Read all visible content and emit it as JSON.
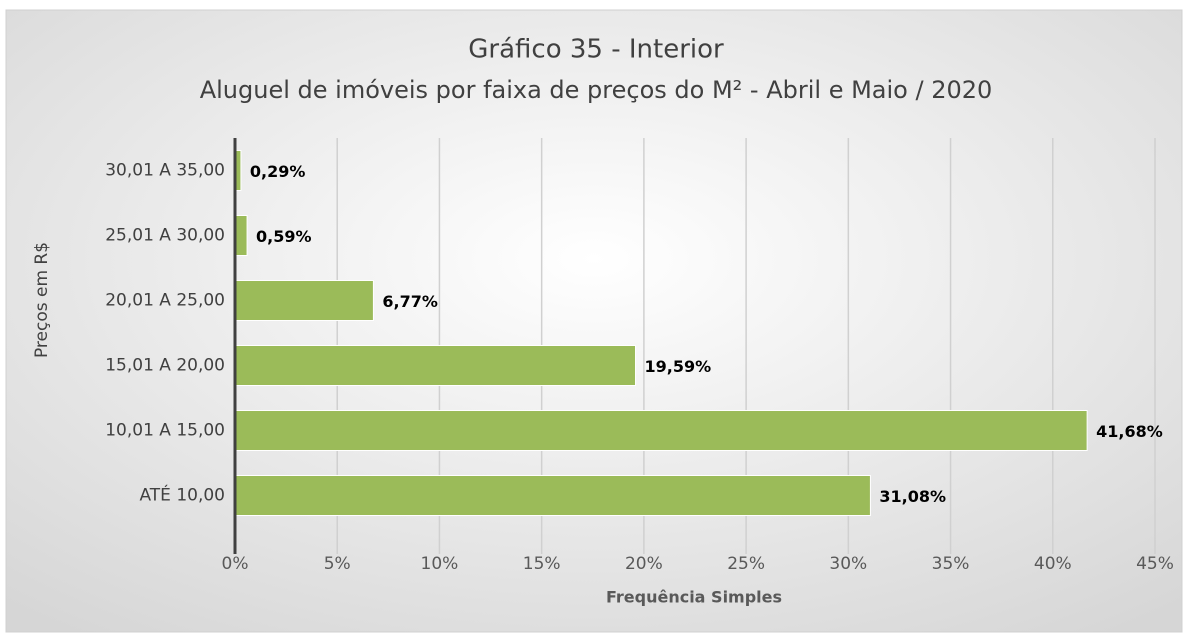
{
  "chart_data": {
    "type": "bar",
    "orientation": "horizontal",
    "title": "Gráfico 35 - Interior",
    "subtitle": "Aluguel de imóveis por faixa de preços do M² - Abril e Maio / 2020",
    "xlabel": "Frequência Simples",
    "ylabel": "Preços em R$",
    "categories": [
      "30,01 A 35,00",
      "25,01 A 30,00",
      "20,01 A 25,00",
      "15,01 A 20,00",
      "10,01 A 15,00",
      "ATÉ 10,00"
    ],
    "values": [
      0.29,
      0.59,
      6.77,
      19.59,
      41.68,
      31.08
    ],
    "value_labels": [
      "0,29%",
      "0,59%",
      "6,77%",
      "19,59%",
      "41,68%",
      "31,08%"
    ],
    "color": "#9bbb59",
    "xlim": [
      0,
      45
    ],
    "xticks": [
      {
        "value": 0,
        "label": "0%"
      },
      {
        "value": 5,
        "label": "5%"
      },
      {
        "value": 10,
        "label": "10%"
      },
      {
        "value": 15,
        "label": "15%"
      },
      {
        "value": 20,
        "label": "20%"
      },
      {
        "value": 25,
        "label": "25%"
      },
      {
        "value": 30,
        "label": "30%"
      },
      {
        "value": 35,
        "label": "35%"
      },
      {
        "value": 40,
        "label": "40%"
      },
      {
        "value": 45,
        "label": "45%"
      }
    ],
    "grid": true
  }
}
